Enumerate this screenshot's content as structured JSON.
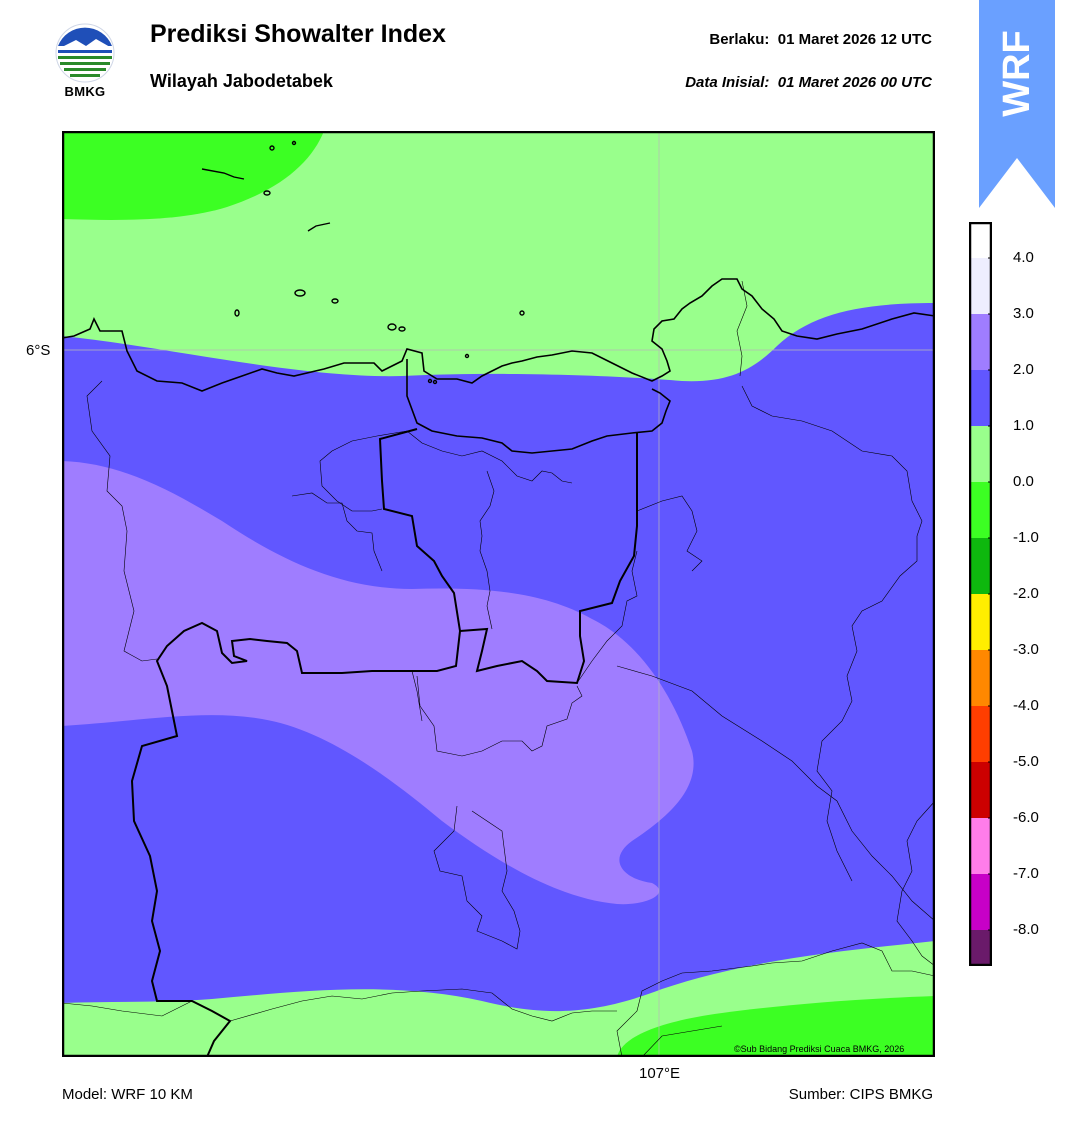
{
  "header": {
    "title": "Prediksi Showalter Index",
    "subtitle": "Wilayah Jabodetabek",
    "valid_label": "Berlaku:",
    "valid_time": "01 Maret 2026 12 UTC",
    "init_label": "Data Inisial:",
    "init_time": "01 Maret 2026 00 UTC"
  },
  "logo": {
    "text": "BMKG",
    "icon": "bmkg-logo-icon"
  },
  "badge": {
    "text": "WRF",
    "color": "#6aa0ff"
  },
  "map": {
    "lat_label": "6°S",
    "lon_label": "107°E",
    "credit": "©Sub Bidang Prediksi Cuaca BMKG, 2026",
    "fill_colors": {
      "0 to 1": "#99ff8c",
      "-1 to 0": "#3cff23",
      "1 to 2": "#6157ff",
      "2 to 3": "#9f7dff"
    }
  },
  "colorbar": {
    "ticks": [
      "4.0",
      "3.0",
      "2.0",
      "1.0",
      "0.0",
      "-1.0",
      "-2.0",
      "-3.0",
      "-4.0",
      "-5.0",
      "-6.0",
      "-7.0",
      "-8.0"
    ],
    "colors": [
      "#eeeefe",
      "#9f7dff",
      "#6157ff",
      "#99ff8c",
      "#3cff23",
      "#0eb80e",
      "#ffee00",
      "#ff8800",
      "#ff3e00",
      "#cc0000",
      "#ff7dea",
      "#c700c7",
      "#6a1a6a"
    ]
  },
  "footer": {
    "model": "Model: WRF 10 KM",
    "source": "Sumber: CIPS BMKG"
  }
}
